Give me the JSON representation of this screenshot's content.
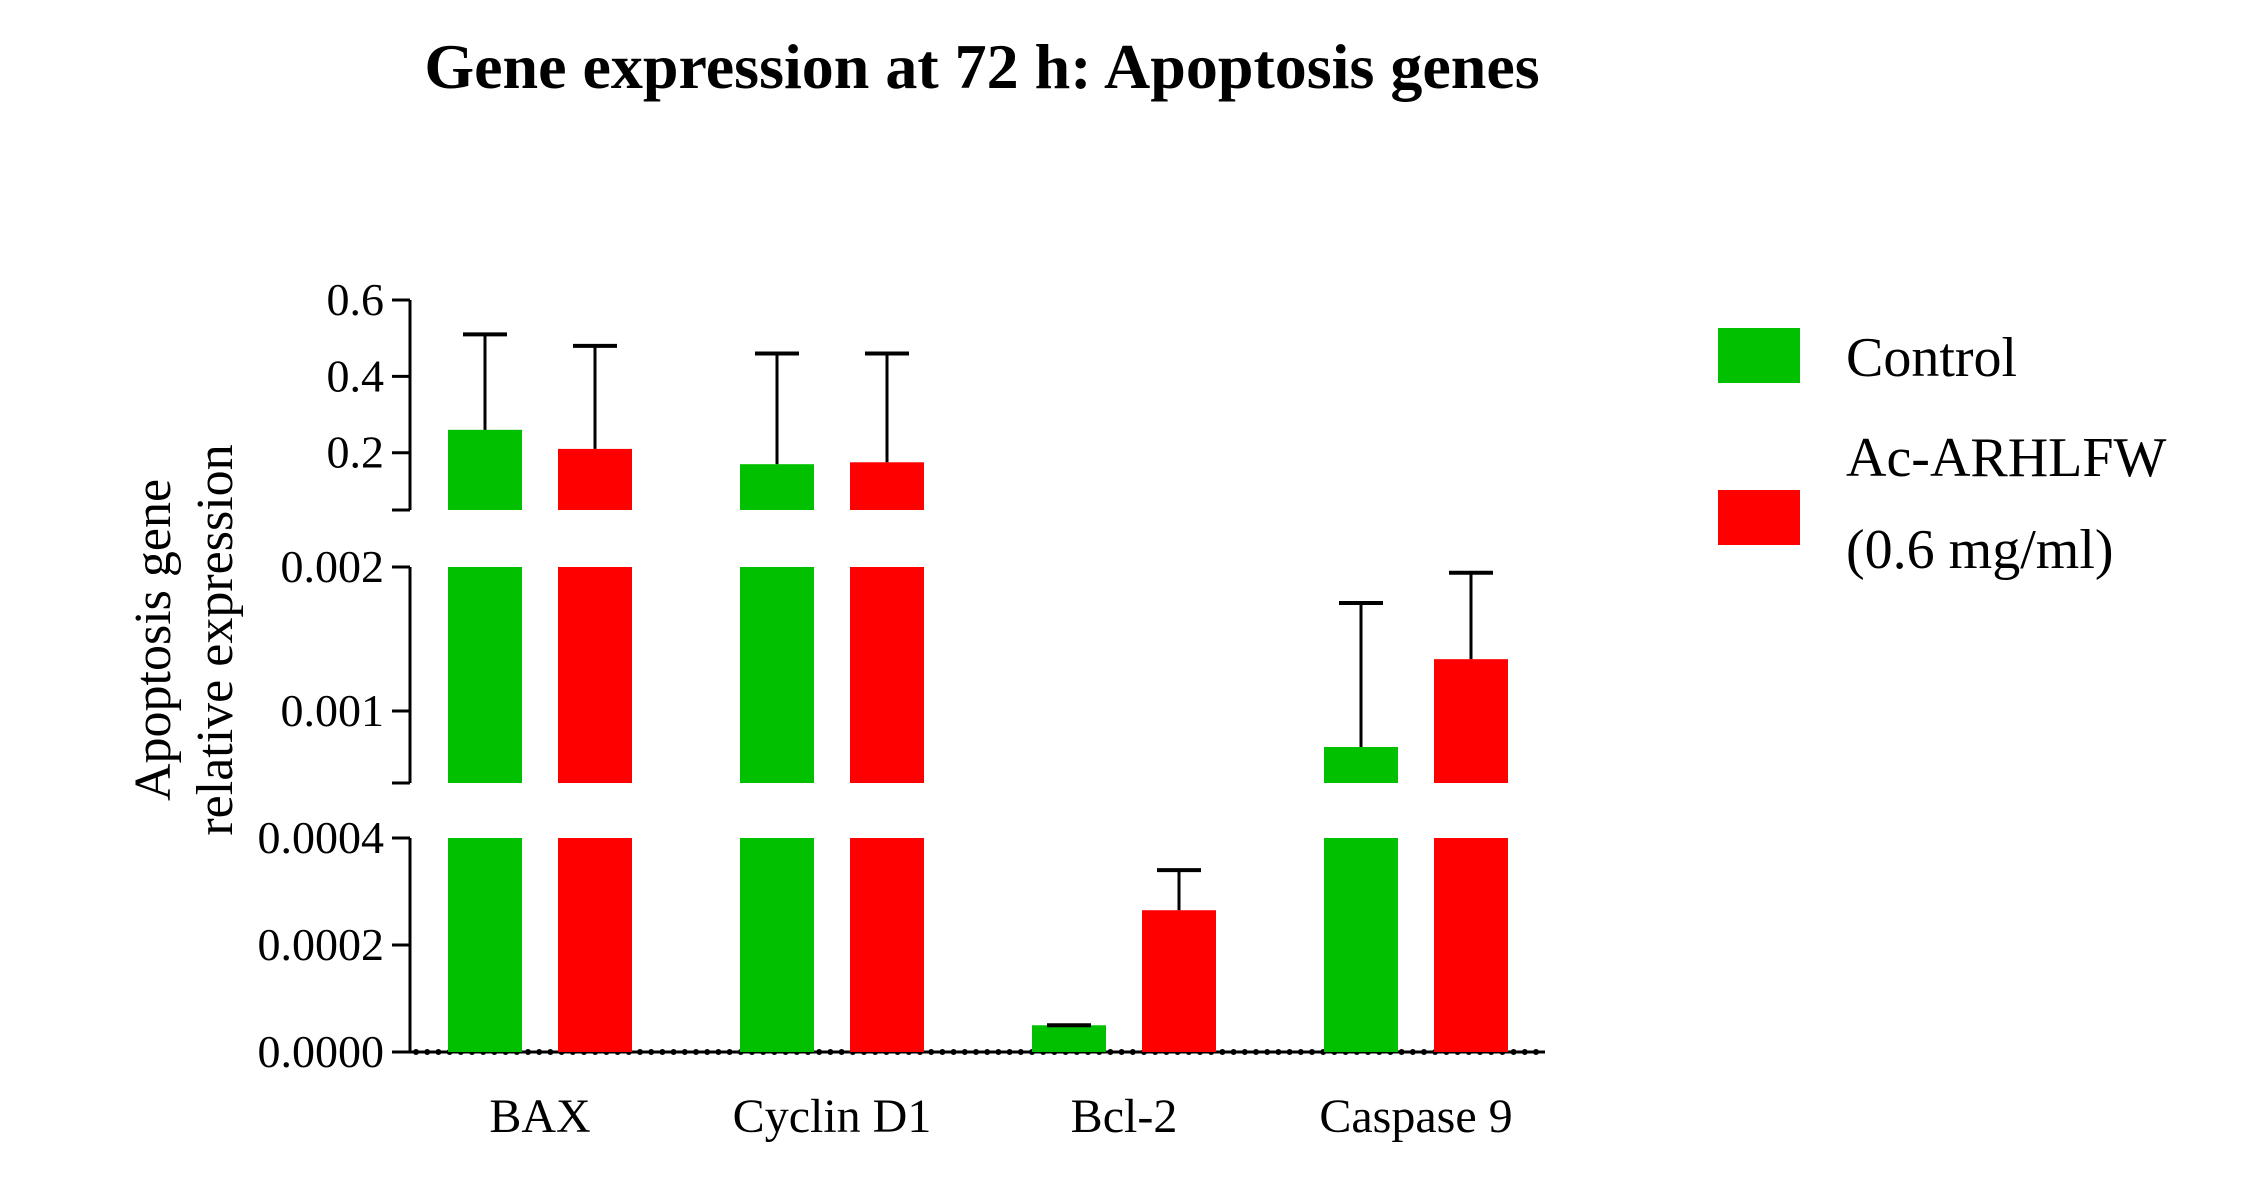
{
  "chart_data": {
    "type": "bar",
    "title": "Gene expression at 72 h: Apoptosis genes",
    "ylabel_lines": [
      "Apoptosis gene",
      "relative expression"
    ],
    "xlabel": "",
    "categories": [
      "BAX",
      "Cyclin D1",
      "Bcl-2",
      "Caspase 9"
    ],
    "series": [
      {
        "name": "Control",
        "color": "#00c000",
        "values": [
          0.26,
          0.17,
          5e-05,
          0.00075
        ],
        "errors": [
          0.25,
          0.29,
          0.0,
          0.001
        ]
      },
      {
        "name": "Ac-ARHLFW (0.6 mg/ml)",
        "legend_lines": [
          "Ac-ARHLFW",
          "(0.6 mg/ml)"
        ],
        "color": "#ff0000",
        "values": [
          0.21,
          0.175,
          0.000265,
          0.00136
        ],
        "errors": [
          0.27,
          0.285,
          7.5e-05,
          0.0006
        ]
      }
    ],
    "y_axis_segments": [
      {
        "range": [
          0,
          0.0004
        ],
        "ticks": [
          0.0,
          0.0002,
          0.0004
        ],
        "tick_labels": [
          "0.0000",
          "0.0002",
          "0.0004"
        ]
      },
      {
        "range": [
          0.0005,
          0.002
        ],
        "ticks": [
          0.001,
          0.002
        ],
        "tick_labels": [
          "0.001",
          "0.002"
        ]
      },
      {
        "range": [
          0.05,
          0.6
        ],
        "ticks": [
          0.2,
          0.4,
          0.6
        ],
        "tick_labels": [
          "0.2",
          "0.4",
          "0.6"
        ]
      }
    ],
    "legend_position": "right",
    "grid": false
  }
}
